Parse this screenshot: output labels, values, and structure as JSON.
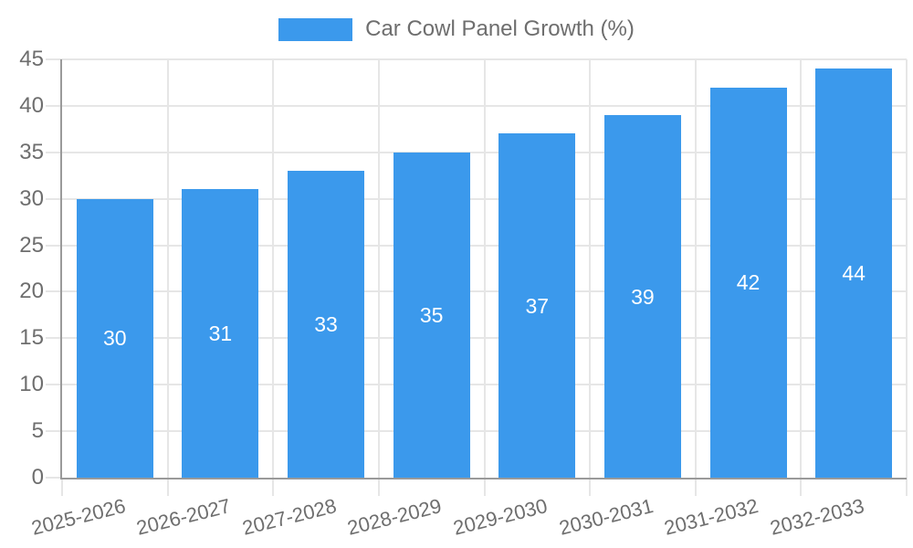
{
  "legend": {
    "label": "Car Cowl Panel Growth (%)"
  },
  "chart_data": {
    "type": "bar",
    "title": "Car Cowl Panel Growth (%)",
    "categories": [
      "2025-2026",
      "2026-2027",
      "2027-2028",
      "2028-2029",
      "2029-2030",
      "2030-2031",
      "2031-2032",
      "2032-2033"
    ],
    "values": [
      30,
      31,
      33,
      35,
      37,
      39,
      42,
      44
    ],
    "value_labels": [
      "30",
      "31",
      "33",
      "35",
      "37",
      "39",
      "42",
      "44"
    ],
    "ytick_labels": [
      "0",
      "5",
      "10",
      "15",
      "20",
      "25",
      "30",
      "35",
      "40",
      "45"
    ],
    "xlabel": "",
    "ylabel": "",
    "ylim": [
      0,
      45
    ],
    "ytick_step": 5,
    "grid": true,
    "legend_position": "top",
    "colors": {
      "bar": "#3B99EC",
      "value_label": "#ffffff",
      "axis_text": "#6e6e6e",
      "grid_line": "#e6e6e6",
      "axis_line": "#9a9a9a",
      "background": "#ffffff"
    }
  }
}
